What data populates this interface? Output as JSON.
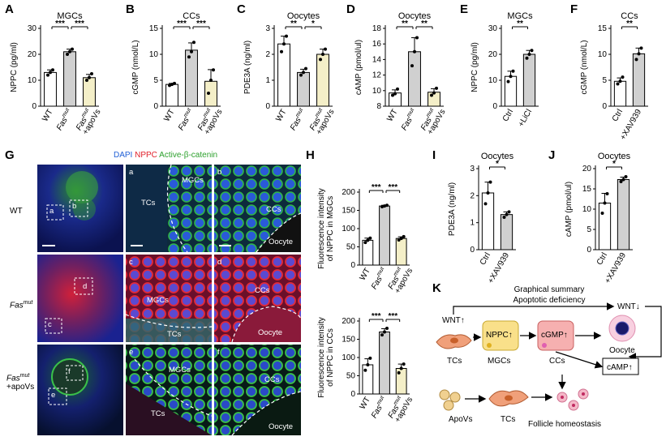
{
  "panels": {
    "A": {
      "label": "A",
      "title": "MGCs",
      "ylabel": "NPPC (pg/ml)",
      "yticks": [
        0,
        10,
        20,
        30
      ],
      "ymax": 30,
      "xlabels": [
        "WT",
        "Fas",
        "+apoVs"
      ],
      "values": [
        13,
        21,
        11
      ],
      "colors": [
        "#ffffff",
        "#d0d0d0",
        "#f4efc8"
      ],
      "points": [
        [
          12,
          13,
          14
        ],
        [
          20,
          21,
          22
        ],
        [
          10,
          11,
          12.5
        ]
      ],
      "sig": [
        "***",
        "***"
      ]
    },
    "B": {
      "label": "B",
      "title": "CCs",
      "ylabel": "cGMP (nmol/L)",
      "yticks": [
        0,
        5,
        10,
        15
      ],
      "ymax": 15,
      "xlabels": [
        "WT",
        "Fas",
        "+apoVs"
      ],
      "values": [
        4.2,
        10.8,
        4.8
      ],
      "colors": [
        "#ffffff",
        "#d0d0d0",
        "#f4efc8"
      ],
      "points": [
        [
          4,
          4.2,
          4.4
        ],
        [
          9.5,
          10.5,
          12.3
        ],
        [
          2.5,
          5,
          7
        ]
      ],
      "sig": [
        "***",
        "***"
      ]
    },
    "C": {
      "label": "C",
      "title": "Oocytes",
      "ylabel": "PDE3A (ng/ml)",
      "yticks": [
        0,
        1,
        2,
        3
      ],
      "ymax": 3,
      "xlabels": [
        "WT",
        "Fas",
        "+apoVs"
      ],
      "values": [
        2.4,
        1.3,
        2
      ],
      "colors": [
        "#ffffff",
        "#d0d0d0",
        "#f4efc8"
      ],
      "points": [
        [
          2.1,
          2.4,
          2.7
        ],
        [
          1.2,
          1.3,
          1.45
        ],
        [
          1.8,
          2,
          2.2
        ]
      ],
      "sig": [
        "**",
        "*"
      ]
    },
    "D": {
      "label": "D",
      "title": "Oocytes",
      "ylabel": "cAMP (pmol/ul)",
      "yticks": [
        8,
        10,
        12,
        14,
        16,
        18
      ],
      "ymin": 8,
      "ymax": 18,
      "xlabels": [
        "WT",
        "Fas",
        "+apoVs"
      ],
      "values": [
        9.7,
        15,
        9.8
      ],
      "colors": [
        "#ffffff",
        "#d0d0d0",
        "#f4efc8"
      ],
      "points": [
        [
          9.4,
          9.6,
          10.2
        ],
        [
          13.2,
          15,
          16.8
        ],
        [
          9.4,
          9.7,
          10.3
        ]
      ],
      "sig": [
        "**",
        "**"
      ]
    },
    "E": {
      "label": "E",
      "title": "MGCs",
      "ylabel": "NPPC (pg/ml)",
      "yticks": [
        0,
        10,
        20,
        30
      ],
      "ymax": 30,
      "xlabels": [
        "Ctrl",
        "+LiCl"
      ],
      "values": [
        11.5,
        20
      ],
      "colors": [
        "#ffffff",
        "#d0d0d0"
      ],
      "points": [
        [
          9.5,
          11.5,
          13.5
        ],
        [
          18.5,
          20,
          21.5
        ]
      ],
      "sig": [
        "**"
      ]
    },
    "F": {
      "label": "F",
      "title": "CCs",
      "ylabel": "cGMP (nmol/L)",
      "yticks": [
        0,
        5,
        10,
        15
      ],
      "ymax": 15,
      "xlabels": [
        "Ctrl",
        "+XAV939"
      ],
      "values": [
        4.8,
        10.1
      ],
      "colors": [
        "#ffffff",
        "#d0d0d0"
      ],
      "points": [
        [
          4.3,
          4.8,
          5.6
        ],
        [
          9,
          10.1,
          11.2
        ]
      ],
      "sig": [
        "**"
      ]
    },
    "H1": {
      "label": "H",
      "ylabel1": "Fluorescence intensity",
      "ylabel2": "of NPPC in MGCs",
      "yticks": [
        0,
        50,
        100,
        150,
        200
      ],
      "ymax": 200,
      "xlabels": [
        "WT",
        "Fas",
        "+apoVs"
      ],
      "values": [
        68,
        162,
        73
      ],
      "colors": [
        "#ffffff",
        "#d0d0d0",
        "#f4efc8"
      ],
      "points": [
        [
          62,
          68,
          74
        ],
        [
          160,
          162,
          164
        ],
        [
          69,
          73,
          78
        ]
      ],
      "sig": [
        "***",
        "***"
      ]
    },
    "H2": {
      "ylabel1": "Fluorescence intensity",
      "ylabel2": "of NPPC in CCs",
      "yticks": [
        0,
        50,
        100,
        150,
        200
      ],
      "ymax": 200,
      "xlabels": [
        "WT",
        "Fas",
        "+apoVs"
      ],
      "values": [
        80,
        170,
        70
      ],
      "colors": [
        "#ffffff",
        "#d0d0d0",
        "#f4efc8"
      ],
      "points": [
        [
          65,
          80,
          98
        ],
        [
          162,
          170,
          180
        ],
        [
          58,
          70,
          82
        ]
      ],
      "sig": [
        "***",
        "***"
      ]
    },
    "I": {
      "label": "I",
      "title": "Oocytes",
      "ylabel": "PDE3A (ng/ml)",
      "yticks": [
        0,
        1,
        2,
        3
      ],
      "ymax": 3,
      "xlabels": [
        "Ctrl",
        "+XAV939"
      ],
      "values": [
        2.1,
        1.3
      ],
      "colors": [
        "#ffffff",
        "#d0d0d0"
      ],
      "points": [
        [
          1.7,
          2.1,
          2.5
        ],
        [
          1.2,
          1.3,
          1.4
        ]
      ],
      "sig": [
        "*"
      ]
    },
    "J": {
      "label": "J",
      "title": "Oocytes",
      "ylabel": "cAMP (pmol/ul)",
      "yticks": [
        0,
        5,
        10,
        15,
        20
      ],
      "ymax": 20,
      "xlabels": [
        "Ctrl",
        "+XAV939"
      ],
      "values": [
        11.5,
        17.3
      ],
      "colors": [
        "#ffffff",
        "#d0d0d0"
      ],
      "points": [
        [
          9,
          11.5,
          13.8
        ],
        [
          16.8,
          17.3,
          18
        ]
      ],
      "sig": [
        "*"
      ]
    }
  },
  "chart_data": [
    {
      "type": "bar",
      "panel": "A",
      "title": "MGCs",
      "ylabel": "NPPC (pg/ml)",
      "categories": [
        "WT",
        "Fas mut",
        "Fas mut +apoVs"
      ],
      "values": [
        13,
        21,
        11
      ],
      "ylim": [
        0,
        30
      ]
    },
    {
      "type": "bar",
      "panel": "B",
      "title": "CCs",
      "ylabel": "cGMP (nmol/L)",
      "categories": [
        "WT",
        "Fas mut",
        "Fas mut +apoVs"
      ],
      "values": [
        4.2,
        10.8,
        4.8
      ],
      "ylim": [
        0,
        15
      ]
    },
    {
      "type": "bar",
      "panel": "C",
      "title": "Oocytes",
      "ylabel": "PDE3A (ng/ml)",
      "categories": [
        "WT",
        "Fas mut",
        "Fas mut +apoVs"
      ],
      "values": [
        2.4,
        1.3,
        2.0
      ],
      "ylim": [
        0,
        3
      ]
    },
    {
      "type": "bar",
      "panel": "D",
      "title": "Oocytes",
      "ylabel": "cAMP (pmol/ul)",
      "categories": [
        "WT",
        "Fas mut",
        "Fas mut +apoVs"
      ],
      "values": [
        9.7,
        15,
        9.8
      ],
      "ylim": [
        8,
        18
      ]
    },
    {
      "type": "bar",
      "panel": "E",
      "title": "MGCs",
      "ylabel": "NPPC (pg/ml)",
      "categories": [
        "Ctrl",
        "+LiCl"
      ],
      "values": [
        11.5,
        20
      ],
      "ylim": [
        0,
        30
      ]
    },
    {
      "type": "bar",
      "panel": "F",
      "title": "CCs",
      "ylabel": "cGMP (nmol/L)",
      "categories": [
        "Ctrl",
        "+XAV939"
      ],
      "values": [
        4.8,
        10.1
      ],
      "ylim": [
        0,
        15
      ]
    },
    {
      "type": "bar",
      "panel": "H",
      "ylabel": "Fluorescence intensity of NPPC in MGCs",
      "categories": [
        "WT",
        "Fas mut",
        "Fas mut +apoVs"
      ],
      "values": [
        68,
        162,
        73
      ],
      "ylim": [
        0,
        200
      ]
    },
    {
      "type": "bar",
      "panel": "H",
      "ylabel": "Fluorescence intensity of NPPC in CCs",
      "categories": [
        "WT",
        "Fas mut",
        "Fas mut +apoVs"
      ],
      "values": [
        80,
        170,
        70
      ],
      "ylim": [
        0,
        200
      ]
    },
    {
      "type": "bar",
      "panel": "I",
      "title": "Oocytes",
      "ylabel": "PDE3A (ng/ml)",
      "categories": [
        "Ctrl",
        "+XAV939"
      ],
      "values": [
        2.1,
        1.3
      ],
      "ylim": [
        0,
        3
      ]
    },
    {
      "type": "bar",
      "panel": "J",
      "title": "Oocytes",
      "ylabel": "cAMP (pmol/ul)",
      "categories": [
        "Ctrl",
        "+XAV939"
      ],
      "values": [
        11.5,
        17.3
      ],
      "ylim": [
        0,
        20
      ]
    }
  ],
  "mut_sup": "mut",
  "G": {
    "label": "G",
    "legend": {
      "dapi": "DAPI",
      "nppc": "NPPC",
      "catenin": "Active-β-catenin",
      "colors": {
        "dapi": "#1f5fd6",
        "nppc": "#e0202a",
        "catenin": "#2ca02c"
      }
    },
    "rows": {
      "wt": "WT",
      "fas": "Fas",
      "fas_apo_1": "Fas",
      "fas_apo_2": "+apoVs"
    },
    "tiles": {
      "r1": {
        "a_label": "a",
        "a_tc": "TCs",
        "a_mgc": "MGCs",
        "b_label": "b",
        "b_cc": "CCs",
        "b_oocyte": "Oocyte",
        "box_a": "a",
        "box_b": "b"
      },
      "r2": {
        "c_label": "c",
        "c_mgc": "MGCs",
        "c_tc": "TCs",
        "d_label": "d",
        "d_cc": "CCs",
        "d_oocyte": "Oocyte",
        "box_c": "c",
        "box_d": "d"
      },
      "r3": {
        "e_label": "e",
        "e_mgc": "MGCs",
        "e_tc": "TCs",
        "f_label": "f",
        "f_cc": "CCs",
        "f_oocyte": "Oocyte",
        "box_e": "e",
        "box_f": "f"
      }
    }
  },
  "K": {
    "label": "K",
    "title1": "Graphical summary",
    "title2": "Apoptotic deficiency",
    "wnt_up": "WNT↑",
    "wnt_down": "WNT↓",
    "nppc": "NPPC↑",
    "cgmp": "cGMP↑",
    "camp": "cAMP↑",
    "tcs": "TCs",
    "mgcs": "MGCs",
    "ccs": "CCs",
    "oocyte": "Oocyte",
    "apovs": "ApoVs",
    "tcs2": "TCs",
    "homeostasis": "Follicle homeostasis"
  }
}
